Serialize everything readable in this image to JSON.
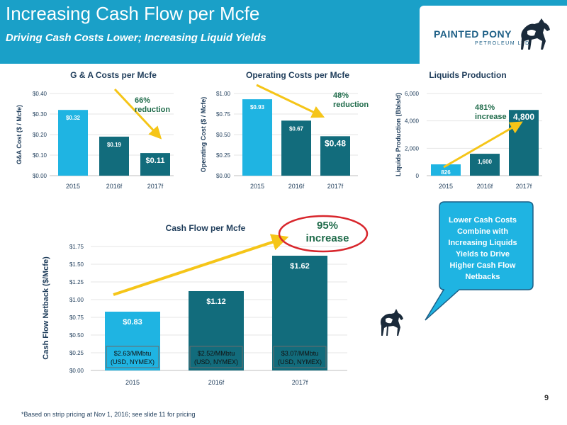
{
  "header": {
    "title": "Increasing Cash Flow per Mcfe",
    "subtitle": "Driving Cash Costs Lower; Increasing Liquid Yields"
  },
  "logo": {
    "name": "PAINTED PONY",
    "sub": "PETROLEUM LTD."
  },
  "colors": {
    "light": "#1fb4e2",
    "dark": "#126c7c",
    "arrow": "#f5c518",
    "annotation": "#1f6b4a",
    "header": "#1aa0c8"
  },
  "chart_data": [
    {
      "id": "ga",
      "type": "bar",
      "title": "G & A Costs per Mcfe",
      "ylabel": "G&A Cost ($ / Mcfe)",
      "categories": [
        "2015",
        "2016f",
        "2017f"
      ],
      "values": [
        0.32,
        0.19,
        0.11
      ],
      "value_labels": [
        "$0.32",
        "$0.19",
        "$0.11"
      ],
      "ylim": [
        0,
        0.4
      ],
      "ticks": [
        0,
        0.1,
        0.2,
        0.3,
        0.4
      ],
      "tick_labels": [
        "$0.00",
        "$0.10",
        "$0.20",
        "$0.30",
        "$0.40"
      ],
      "annotation": [
        "66%",
        "reduction"
      ]
    },
    {
      "id": "op",
      "type": "bar",
      "title": "Operating Costs per Mcfe",
      "ylabel": "Operating Cost ($ / Mcfe)",
      "categories": [
        "2015",
        "2016f",
        "2017f"
      ],
      "values": [
        0.93,
        0.67,
        0.48
      ],
      "value_labels": [
        "$0.93",
        "$0.67",
        "$0.48"
      ],
      "ylim": [
        0,
        1.0
      ],
      "ticks": [
        0,
        0.25,
        0.5,
        0.75,
        1.0
      ],
      "tick_labels": [
        "$0.00",
        "$0.25",
        "$0.50",
        "$0.75",
        "$1.00"
      ],
      "annotation": [
        "48%",
        "reduction"
      ]
    },
    {
      "id": "liq",
      "type": "bar",
      "title": "Liquids Production",
      "ylabel": "Liquids Production (Bbls/d)",
      "categories": [
        "2015",
        "2016f",
        "2017f"
      ],
      "values": [
        826,
        1600,
        4800
      ],
      "value_labels": [
        "826",
        "1,600",
        "4,800"
      ],
      "ylim": [
        0,
        6000
      ],
      "ticks": [
        0,
        2000,
        4000,
        6000
      ],
      "tick_labels": [
        "0",
        "2,000",
        "4,000",
        "6,000"
      ],
      "annotation": [
        "481%",
        "increase"
      ]
    },
    {
      "id": "cf",
      "type": "bar",
      "title": "Cash Flow per Mcfe",
      "ylabel": "Cash Flow Netback ($/Mcfe)",
      "categories": [
        "2015",
        "2016f",
        "2017f"
      ],
      "values": [
        0.83,
        1.12,
        1.62
      ],
      "value_labels": [
        "$0.83",
        "$1.12",
        "$1.62"
      ],
      "ylim": [
        0,
        1.75
      ],
      "ticks": [
        0,
        0.25,
        0.5,
        0.75,
        1.0,
        1.25,
        1.5,
        1.75
      ],
      "tick_labels": [
        "$0.00",
        "$0.25",
        "$0.50",
        "$0.75",
        "$1.00",
        "$1.25",
        "$1.50",
        "$1.75"
      ],
      "sublabels": [
        [
          "$2.63/MMbtu",
          "(USD, NYMEX)"
        ],
        [
          "$2.52/MMbtu",
          "(USD, NYMEX)"
        ],
        [
          "$3.07/MMbtu",
          "(USD, NYMEX)"
        ]
      ],
      "annotation": [
        "95%",
        "increase"
      ]
    }
  ],
  "callout": {
    "lines": [
      "Lower Cash Costs",
      "Combine with",
      "Increasing Liquids",
      "Yields to Drive",
      "Higher Cash Flow",
      "Netbacks"
    ]
  },
  "page_number": "9",
  "footnote": "*Based on strip pricing at Nov 1, 2016; see slide 11 for pricing"
}
